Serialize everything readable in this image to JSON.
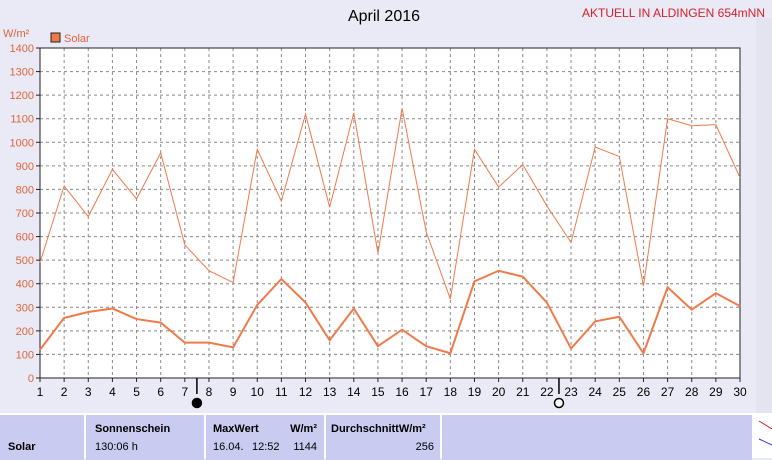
{
  "chart_data": {
    "type": "line",
    "title": "April 2016",
    "header_right": "AKTUELL IN ALDINGEN 654mNN",
    "ylabel": "W/m²",
    "legend": "top-left",
    "grid": true,
    "ylim": [
      0,
      1400
    ],
    "yticks": [
      0,
      100,
      200,
      300,
      400,
      500,
      600,
      700,
      800,
      900,
      1000,
      1100,
      1200,
      1300,
      1400
    ],
    "x": [
      1,
      2,
      3,
      4,
      5,
      6,
      7,
      8,
      9,
      10,
      11,
      12,
      13,
      14,
      15,
      16,
      17,
      18,
      19,
      20,
      21,
      22,
      23,
      24,
      25,
      26,
      27,
      28,
      29,
      30
    ],
    "moon_phases": [
      {
        "day": 7.5,
        "phase": "new"
      },
      {
        "day": 22.5,
        "phase": "full"
      }
    ],
    "color": "#f07a4a",
    "series": [
      {
        "name": "Solar",
        "role": "legend",
        "values": [
          120,
          255,
          280,
          295,
          250,
          235,
          150,
          150,
          130,
          310,
          420,
          320,
          160,
          295,
          135,
          205,
          135,
          105,
          410,
          455,
          430,
          320,
          125,
          240,
          260,
          105,
          385,
          290,
          360,
          305
        ]
      },
      {
        "name": "",
        "role": "max",
        "values": [
          490,
          815,
          685,
          885,
          760,
          955,
          565,
          455,
          405,
          970,
          750,
          1120,
          725,
          1125,
          530,
          1144,
          620,
          335,
          970,
          810,
          905,
          730,
          575,
          980,
          940,
          390,
          1100,
          1070,
          1075,
          850
        ]
      }
    ]
  },
  "footer": {
    "row_label": "Solar",
    "sunshine": {
      "header": "Sonnenschein",
      "value": "130:06 h"
    },
    "max": {
      "header": "MaxWert",
      "unit": "W/m²",
      "date": "16.04.",
      "time": "12:52",
      "value": "1144"
    },
    "avg": {
      "header": "DurchschnittW/m²",
      "value": "256"
    }
  }
}
